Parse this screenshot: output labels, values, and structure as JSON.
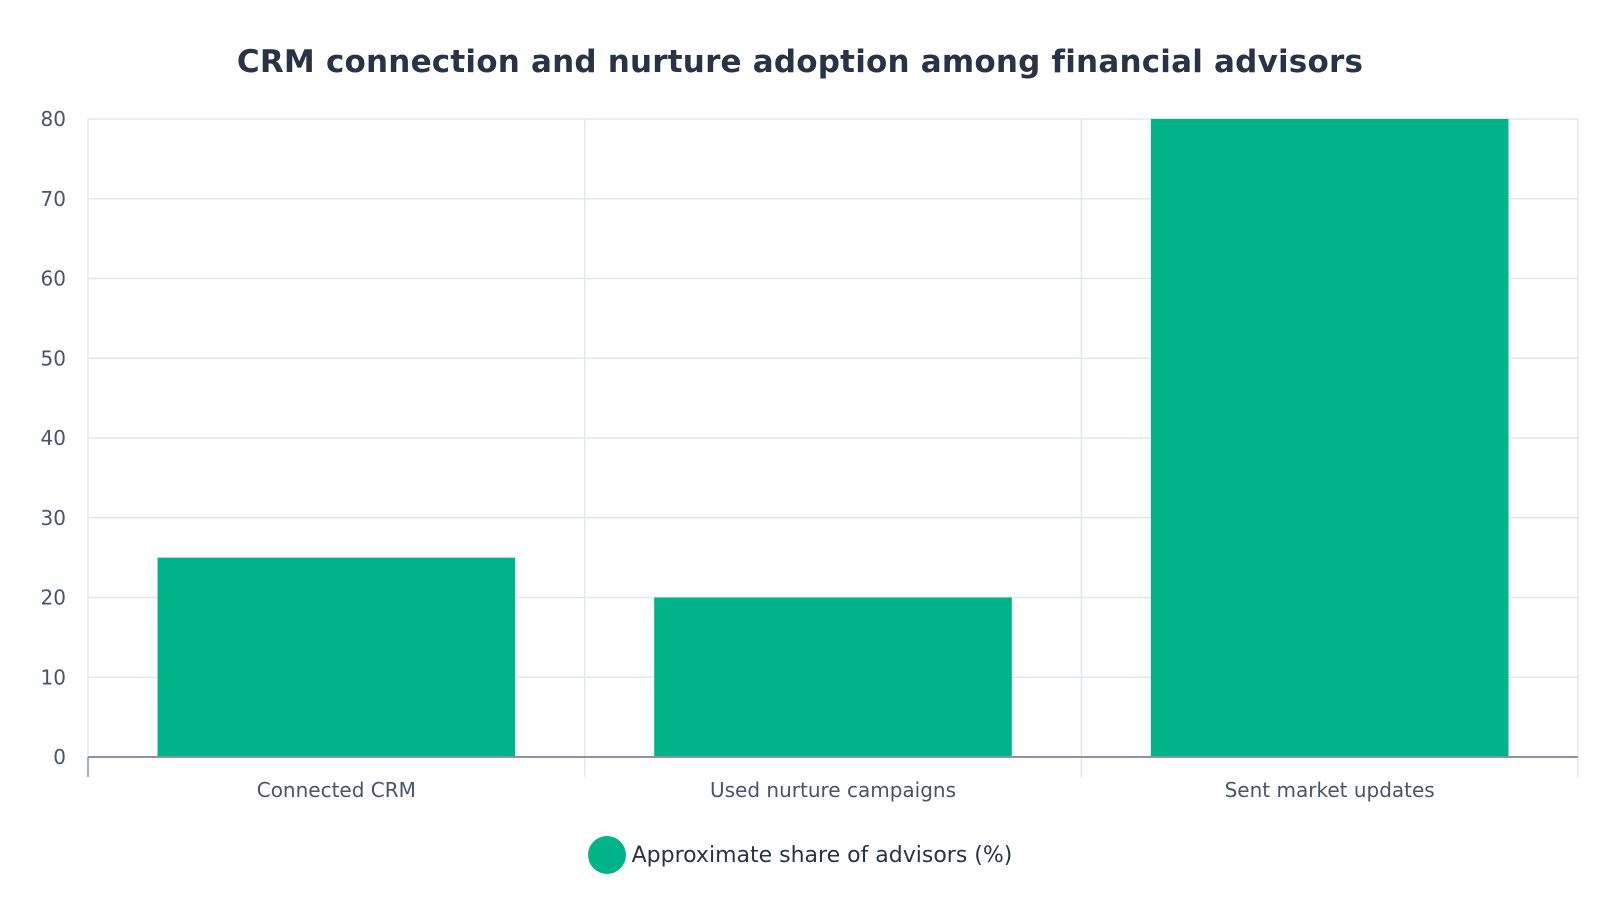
{
  "chart_data": {
    "type": "bar",
    "title": "CRM connection and nurture adoption among financial advisors",
    "categories": [
      "Connected CRM",
      "Used nurture campaigns",
      "Sent market updates"
    ],
    "series": [
      {
        "name": "Approximate share of advisors (%)",
        "values": [
          25,
          20,
          80
        ],
        "color": "#00b388"
      }
    ],
    "xlabel": "",
    "ylabel": "",
    "ylim": [
      0,
      80
    ],
    "yticks": [
      "0",
      "10",
      "20",
      "30",
      "40",
      "50",
      "60",
      "70",
      "80"
    ],
    "grid": true,
    "legend_position": "bottom-center"
  }
}
